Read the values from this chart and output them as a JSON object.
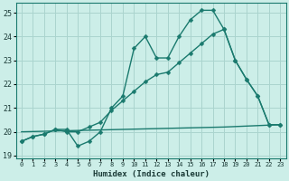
{
  "xlabel": "Humidex (Indice chaleur)",
  "bg_color": "#cceee8",
  "grid_color": "#aad4ce",
  "line_color": "#1a7a6e",
  "xlim": [
    -0.5,
    23.5
  ],
  "ylim": [
    18.9,
    25.4
  ],
  "xticks": [
    0,
    1,
    2,
    3,
    4,
    5,
    6,
    7,
    8,
    9,
    10,
    11,
    12,
    13,
    14,
    15,
    16,
    17,
    18,
    19,
    20,
    21,
    22,
    23
  ],
  "yticks": [
    19,
    20,
    21,
    22,
    23,
    24,
    25
  ],
  "line1_x": [
    0,
    1,
    2,
    3,
    4,
    5,
    6,
    7,
    8,
    9,
    10,
    11,
    12,
    13,
    14,
    15,
    16,
    17,
    18,
    19,
    20,
    21,
    22,
    23
  ],
  "line1_y": [
    19.6,
    19.8,
    19.9,
    20.1,
    20.1,
    19.4,
    19.6,
    20.0,
    21.0,
    21.5,
    23.5,
    24.0,
    23.1,
    23.1,
    24.0,
    24.7,
    25.1,
    25.1,
    24.3,
    23.0,
    22.2,
    21.5,
    20.3,
    20.3
  ],
  "line2_x": [
    0,
    1,
    2,
    3,
    4,
    5,
    6,
    7,
    8,
    9,
    10,
    11,
    12,
    13,
    14,
    15,
    16,
    17,
    18,
    19,
    20,
    21,
    22,
    23
  ],
  "line2_y": [
    19.6,
    19.8,
    19.9,
    20.1,
    20.0,
    20.0,
    20.2,
    20.4,
    20.9,
    21.3,
    21.7,
    22.1,
    22.4,
    22.5,
    22.9,
    23.3,
    23.7,
    24.1,
    24.3,
    23.0,
    22.2,
    21.5,
    20.3,
    20.3
  ],
  "line3_x": [
    0,
    18,
    23
  ],
  "line3_y": [
    20.0,
    20.2,
    20.3
  ],
  "marker_size": 2.5,
  "line_width": 1.0
}
